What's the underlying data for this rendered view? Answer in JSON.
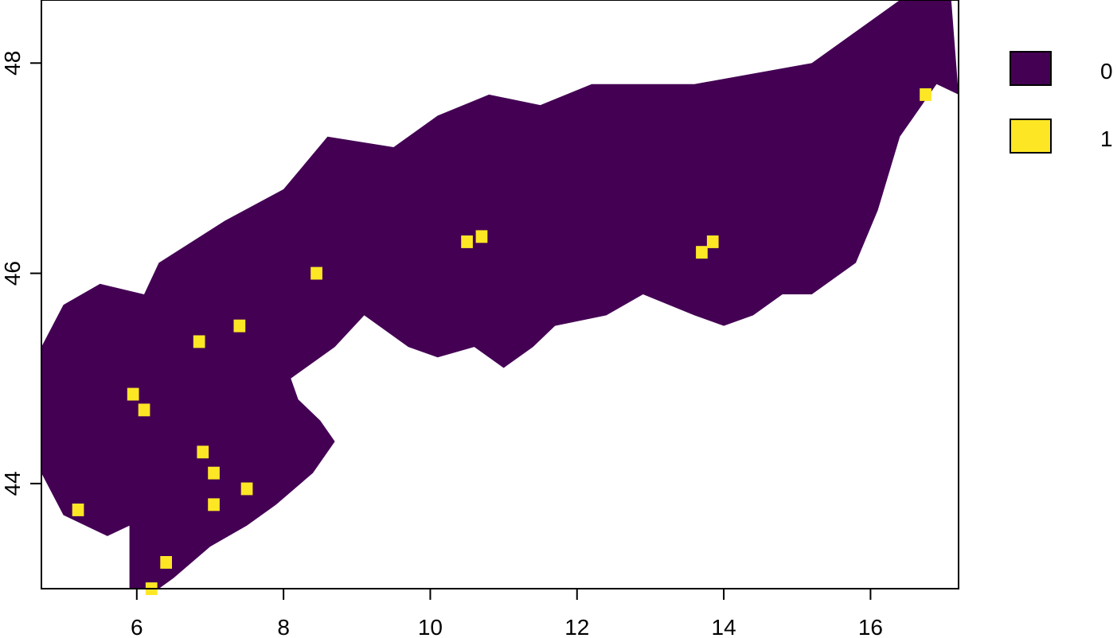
{
  "map": {
    "x_axis": {
      "range": [
        4.7,
        17.2
      ],
      "ticks": [
        6,
        8,
        10,
        12,
        14,
        16
      ],
      "tick_labels": [
        "6",
        "8",
        "10",
        "12",
        "14",
        "16"
      ]
    },
    "y_axis": {
      "range": [
        43.0,
        48.6
      ],
      "ticks": [
        44,
        46,
        48
      ],
      "tick_labels": [
        "44",
        "46",
        "48"
      ]
    },
    "colors": {
      "class_0": "#440154",
      "class_1": "#FDE725"
    },
    "region_class_0": [
      [
        5.0,
        43.7
      ],
      [
        4.7,
        44.1
      ],
      [
        4.7,
        45.3
      ],
      [
        5.0,
        45.7
      ],
      [
        5.5,
        45.9
      ],
      [
        6.1,
        45.8
      ],
      [
        6.3,
        46.1
      ],
      [
        7.2,
        46.5
      ],
      [
        8.0,
        46.8
      ],
      [
        8.6,
        47.3
      ],
      [
        9.5,
        47.2
      ],
      [
        10.1,
        47.5
      ],
      [
        10.8,
        47.7
      ],
      [
        11.5,
        47.6
      ],
      [
        12.2,
        47.8
      ],
      [
        13.6,
        47.8
      ],
      [
        15.2,
        48.0
      ],
      [
        16.4,
        48.6
      ],
      [
        17.1,
        48.6
      ],
      [
        17.2,
        47.7
      ],
      [
        16.9,
        47.8
      ],
      [
        16.4,
        47.3
      ],
      [
        16.1,
        46.6
      ],
      [
        15.8,
        46.1
      ],
      [
        15.2,
        45.8
      ],
      [
        14.8,
        45.8
      ],
      [
        14.4,
        45.6
      ],
      [
        14.0,
        45.5
      ],
      [
        13.6,
        45.6
      ],
      [
        12.9,
        45.8
      ],
      [
        12.4,
        45.6
      ],
      [
        11.7,
        45.5
      ],
      [
        11.4,
        45.3
      ],
      [
        11.0,
        45.1
      ],
      [
        10.6,
        45.3
      ],
      [
        10.1,
        45.2
      ],
      [
        9.7,
        45.3
      ],
      [
        9.1,
        45.6
      ],
      [
        8.7,
        45.3
      ],
      [
        8.1,
        45.0
      ],
      [
        8.2,
        44.8
      ],
      [
        8.5,
        44.6
      ],
      [
        8.7,
        44.4
      ],
      [
        8.4,
        44.1
      ],
      [
        7.9,
        43.8
      ],
      [
        7.5,
        43.6
      ],
      [
        7.0,
        43.4
      ],
      [
        6.5,
        43.1
      ],
      [
        6.3,
        43.0
      ],
      [
        5.9,
        43.0
      ],
      [
        5.9,
        43.6
      ],
      [
        5.6,
        43.5
      ]
    ],
    "region_class_1_cells": [
      [
        10.5,
        46.3
      ],
      [
        10.7,
        46.35
      ],
      [
        8.45,
        46.0
      ],
      [
        7.4,
        45.5
      ],
      [
        6.85,
        45.35
      ],
      [
        13.7,
        46.2
      ],
      [
        13.85,
        46.3
      ],
      [
        16.75,
        47.7
      ],
      [
        5.95,
        44.85
      ],
      [
        6.1,
        44.7
      ],
      [
        6.9,
        44.3
      ],
      [
        7.05,
        44.1
      ],
      [
        7.5,
        43.95
      ],
      [
        7.05,
        43.8
      ],
      [
        5.2,
        43.75
      ],
      [
        6.4,
        43.25
      ],
      [
        6.2,
        43.0
      ]
    ],
    "legend": {
      "items": [
        {
          "label": "0",
          "color": "#440154"
        },
        {
          "label": "1",
          "color": "#FDE725"
        }
      ]
    }
  }
}
